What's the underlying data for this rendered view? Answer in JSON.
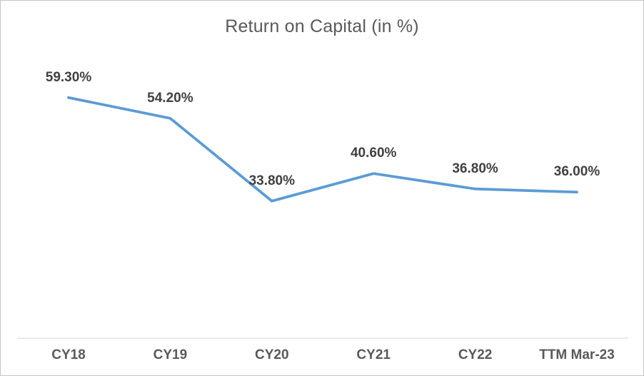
{
  "chart_data": {
    "type": "line",
    "title": "Return on Capital (in %)",
    "categories": [
      "CY18",
      "CY19",
      "CY20",
      "CY21",
      "CY22",
      "TTM Mar-23"
    ],
    "values": [
      59.3,
      54.2,
      33.8,
      40.6,
      36.8,
      36.0
    ],
    "data_labels": [
      "59.30%",
      "54.20%",
      "33.80%",
      "40.60%",
      "36.80%",
      "36.00%"
    ],
    "xlabel": "",
    "ylabel": "",
    "ylim": [
      0,
      70
    ],
    "grid": false,
    "legend": "none",
    "y_axis_visible": false,
    "colors": {
      "line": "#5B9BD5",
      "title_text": "#595959",
      "data_label_text": "#404040",
      "axis_label_text": "#595959",
      "axis_line": "#D9D9D9",
      "background": "#FFFFFF",
      "frame_border": "#C4C4C4"
    }
  }
}
